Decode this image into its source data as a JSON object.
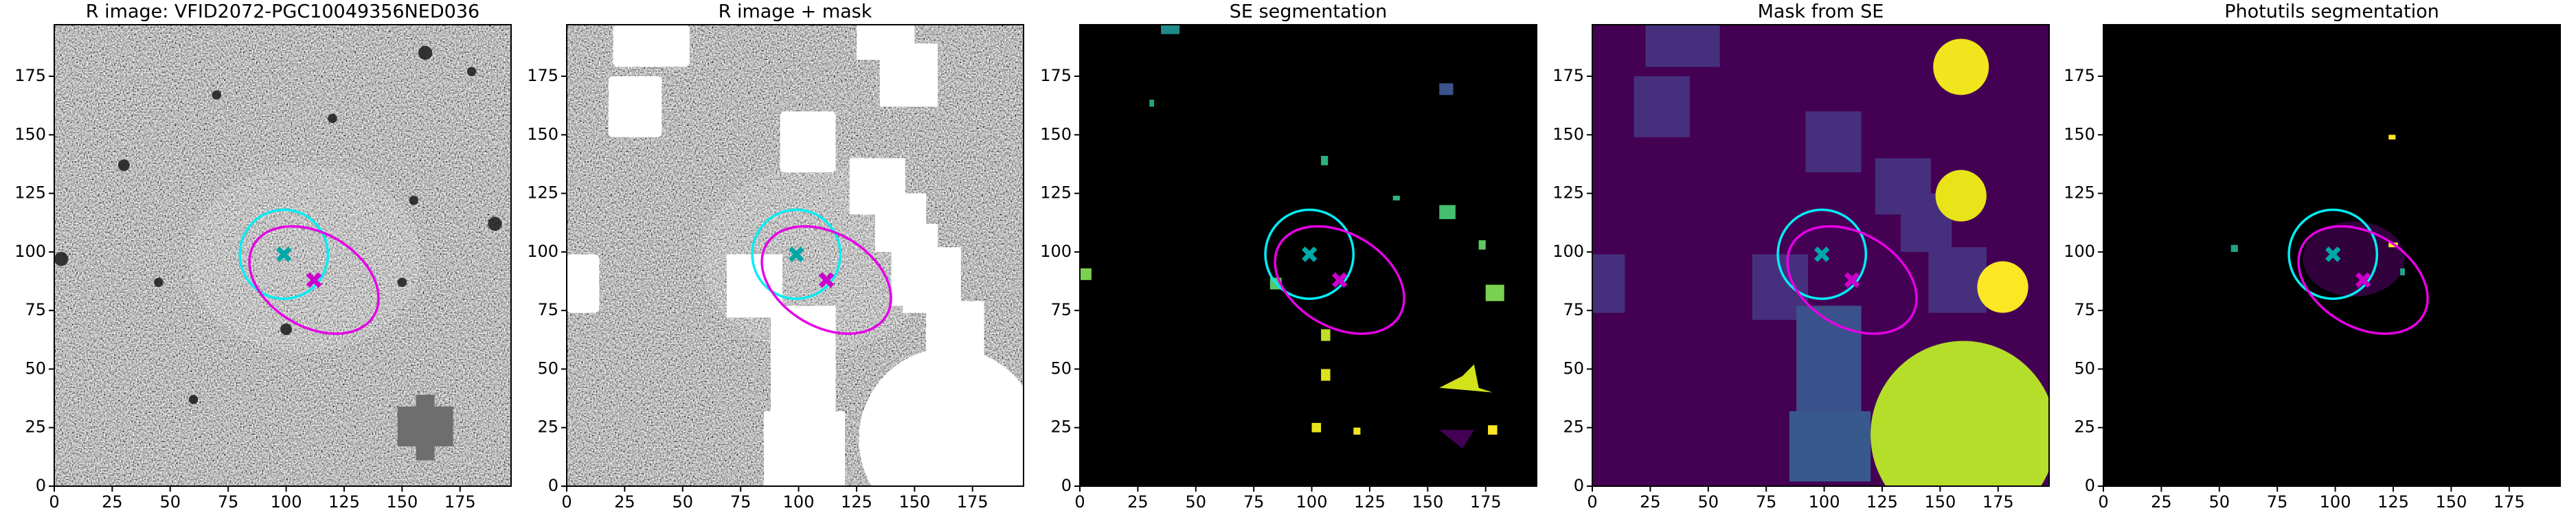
{
  "chart_data": [
    {
      "type": "image",
      "title": "R image: VFID2072-PGC10049356NED036",
      "xlim": [
        0,
        197
      ],
      "ylim": [
        0,
        197
      ],
      "xticks": [
        0,
        25,
        50,
        75,
        100,
        125,
        150,
        175
      ],
      "yticks": [
        0,
        25,
        50,
        75,
        100,
        125,
        150,
        175
      ],
      "overlays": {
        "markers": [
          {
            "x": 99,
            "y": 99,
            "color": "#00a8a8"
          },
          {
            "x": 112,
            "y": 88,
            "color": "#cc00cc"
          }
        ],
        "circle": {
          "x": 99,
          "y": 99,
          "r": 19,
          "color": "#00eef5"
        },
        "ellipse": {
          "x": 112,
          "y": 88,
          "a": 30,
          "b": 20,
          "angle": -30,
          "color": "#e600e6"
        }
      }
    },
    {
      "type": "image",
      "title": "R image + mask",
      "xlim": [
        0,
        197
      ],
      "ylim": [
        0,
        197
      ],
      "xticks": [
        0,
        25,
        50,
        75,
        100,
        125,
        150,
        175
      ],
      "yticks": [
        0,
        25,
        50,
        75,
        100,
        125,
        150,
        175
      ],
      "overlays": {
        "markers": [
          {
            "x": 99,
            "y": 99,
            "color": "#00a8a8"
          },
          {
            "x": 112,
            "y": 88,
            "color": "#cc00cc"
          }
        ],
        "circle": {
          "x": 99,
          "y": 99,
          "r": 19,
          "color": "#00eef5"
        },
        "ellipse": {
          "x": 112,
          "y": 88,
          "a": 30,
          "b": 20,
          "angle": -30,
          "color": "#e600e6"
        }
      }
    },
    {
      "type": "image",
      "title": "SE segmentation",
      "xlim": [
        0,
        197
      ],
      "ylim": [
        0,
        197
      ],
      "xticks": [
        0,
        25,
        50,
        75,
        100,
        125,
        150,
        175
      ],
      "yticks": [
        0,
        25,
        50,
        75,
        100,
        125,
        150,
        175
      ],
      "overlays": {
        "markers": [
          {
            "x": 99,
            "y": 99,
            "color": "#00a8a8"
          },
          {
            "x": 112,
            "y": 88,
            "color": "#cc00cc"
          }
        ],
        "circle": {
          "x": 99,
          "y": 99,
          "r": 19,
          "color": "#00eef5"
        },
        "ellipse": {
          "x": 112,
          "y": 88,
          "a": 30,
          "b": 20,
          "angle": -30,
          "color": "#e600e6"
        }
      }
    },
    {
      "type": "image",
      "title": "Mask from SE",
      "xlim": [
        0,
        197
      ],
      "ylim": [
        0,
        197
      ],
      "xticks": [
        0,
        25,
        50,
        75,
        100,
        125,
        150,
        175
      ],
      "yticks": [
        0,
        25,
        50,
        75,
        100,
        125,
        150,
        175
      ],
      "overlays": {
        "markers": [
          {
            "x": 99,
            "y": 99,
            "color": "#00a8a8"
          },
          {
            "x": 112,
            "y": 88,
            "color": "#cc00cc"
          }
        ],
        "circle": {
          "x": 99,
          "y": 99,
          "r": 19,
          "color": "#00eef5"
        },
        "ellipse": {
          "x": 112,
          "y": 88,
          "a": 30,
          "b": 20,
          "angle": -30,
          "color": "#e600e6"
        }
      }
    },
    {
      "type": "image",
      "title": "Photutils segmentation",
      "xlim": [
        0,
        197
      ],
      "ylim": [
        0,
        197
      ],
      "xticks": [
        0,
        25,
        50,
        75,
        100,
        125,
        150,
        175
      ],
      "yticks": [
        0,
        25,
        50,
        75,
        100,
        125,
        150,
        175
      ],
      "overlays": {
        "markers": [
          {
            "x": 99,
            "y": 99,
            "color": "#00a8a8"
          },
          {
            "x": 112,
            "y": 88,
            "color": "#cc00cc"
          }
        ],
        "circle": {
          "x": 99,
          "y": 99,
          "r": 19,
          "color": "#00eef5"
        },
        "ellipse": {
          "x": 112,
          "y": 88,
          "a": 30,
          "b": 20,
          "angle": -30,
          "color": "#e600e6"
        }
      }
    }
  ]
}
